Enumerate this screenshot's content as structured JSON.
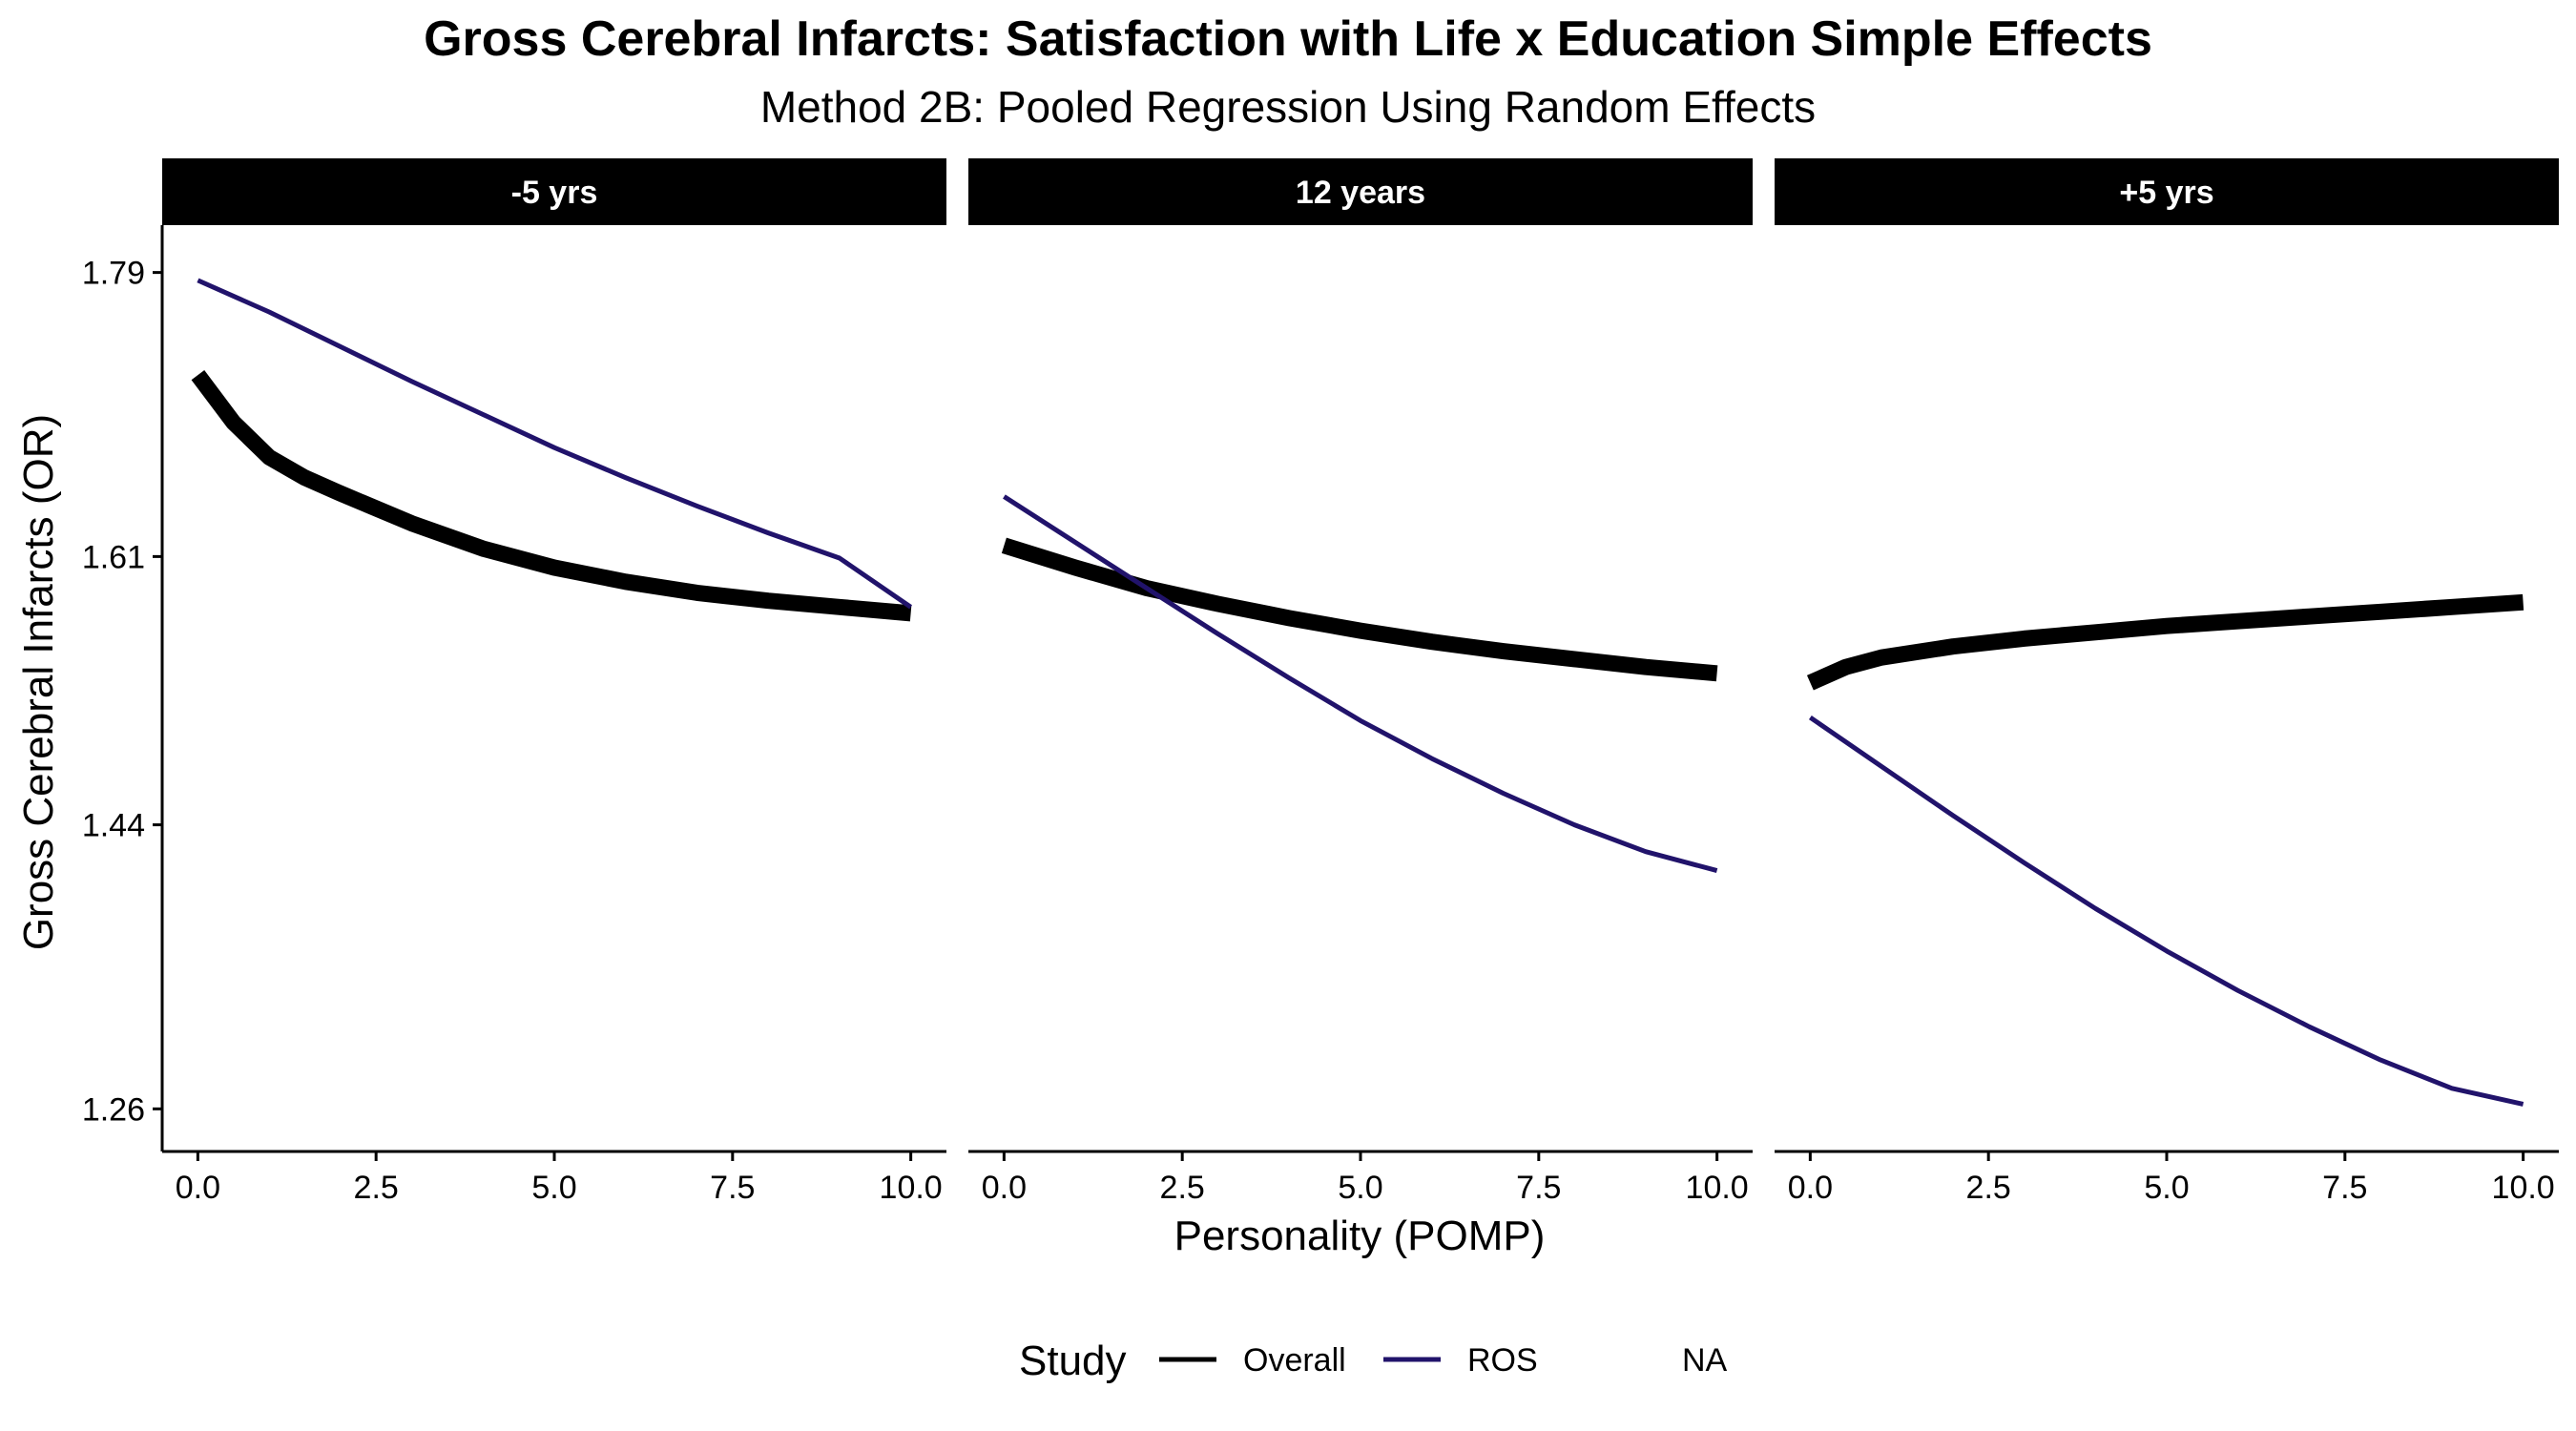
{
  "chart_data": {
    "type": "line",
    "title": "Gross Cerebral Infarcts: Satisfaction with Life x Education Simple Effects",
    "subtitle": "Method 2B: Pooled Regression Using Random Effects",
    "xlabel": "Personality (POMP)",
    "ylabel": "Gross Cerebral Infarcts (OR)",
    "xlim": [
      -0.5,
      10.5
    ],
    "ylim": [
      1.233,
      1.82
    ],
    "x_ticks": [
      0.0,
      2.5,
      5.0,
      7.5,
      10.0
    ],
    "x_tick_labels": [
      "0.0",
      "2.5",
      "5.0",
      "7.5",
      "10.0"
    ],
    "y_ticks": [
      1.26,
      1.44,
      1.61,
      1.79
    ],
    "y_tick_labels": [
      "1.26",
      "1.44",
      "1.61",
      "1.79"
    ],
    "grid": false,
    "legend": {
      "title": "Study",
      "position": "bottom",
      "entries": [
        {
          "label": "Overall",
          "color": "#000000",
          "width": "thin"
        },
        {
          "label": "ROS",
          "color": "#21136b",
          "width": "thin"
        },
        {
          "label": "NA",
          "color": null,
          "width": "none"
        }
      ]
    },
    "panels": [
      {
        "label": "-5 yrs",
        "series": [
          {
            "name": "Overall",
            "color": "#000000",
            "weight": "thick",
            "x": [
              0,
              0.5,
              1,
              1.5,
              2,
              3,
              4,
              5,
              6,
              7,
              8,
              9,
              10
            ],
            "y": [
              1.725,
              1.695,
              1.673,
              1.66,
              1.65,
              1.631,
              1.615,
              1.603,
              1.594,
              1.587,
              1.582,
              1.578,
              1.574
            ]
          },
          {
            "name": "ROS",
            "color": "#21136b",
            "weight": "thin",
            "x": [
              0,
              1,
              2,
              3,
              4,
              5,
              6,
              7,
              8,
              9,
              10
            ],
            "y": [
              1.785,
              1.765,
              1.743,
              1.721,
              1.7,
              1.679,
              1.66,
              1.642,
              1.625,
              1.609,
              1.578
            ]
          }
        ]
      },
      {
        "label": "12 years",
        "series": [
          {
            "name": "Overall",
            "color": "#000000",
            "weight": "thick",
            "x": [
              0,
              1,
              2,
              3,
              4,
              5,
              6,
              7,
              8,
              9,
              10
            ],
            "y": [
              1.617,
              1.603,
              1.59,
              1.58,
              1.571,
              1.563,
              1.556,
              1.55,
              1.545,
              1.54,
              1.536
            ]
          },
          {
            "name": "ROS",
            "color": "#21136b",
            "weight": "thin",
            "x": [
              0,
              1,
              2,
              3,
              4,
              5,
              6,
              7,
              8,
              9,
              10
            ],
            "y": [
              1.648,
              1.619,
              1.59,
              1.561,
              1.533,
              1.506,
              1.482,
              1.46,
              1.44,
              1.423,
              1.411
            ]
          }
        ]
      },
      {
        "label": "+5 yrs",
        "series": [
          {
            "name": "Overall",
            "color": "#000000",
            "weight": "thick",
            "x": [
              0,
              0.5,
              1,
              2,
              3,
              4,
              5,
              6,
              7,
              8,
              9,
              10
            ],
            "y": [
              1.53,
              1.54,
              1.546,
              1.553,
              1.558,
              1.562,
              1.566,
              1.569,
              1.572,
              1.575,
              1.578,
              1.581
            ]
          },
          {
            "name": "ROS",
            "color": "#21136b",
            "weight": "thin",
            "x": [
              0,
              1,
              2,
              3,
              4,
              5,
              6,
              7,
              8,
              9,
              10
            ],
            "y": [
              1.508,
              1.477,
              1.446,
              1.416,
              1.387,
              1.36,
              1.335,
              1.312,
              1.291,
              1.273,
              1.263
            ]
          }
        ]
      }
    ]
  }
}
